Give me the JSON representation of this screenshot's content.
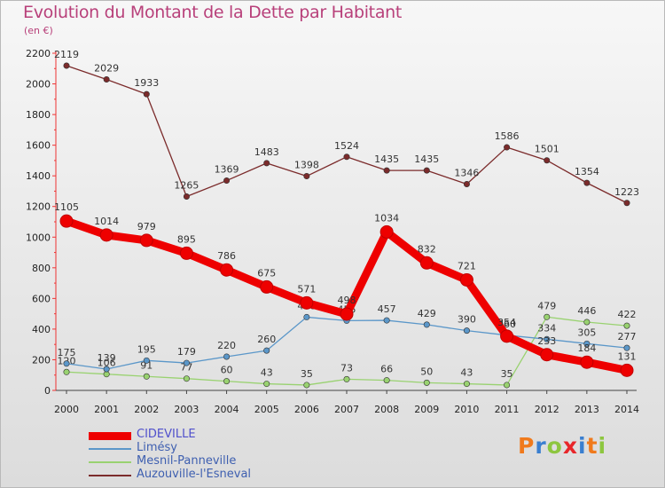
{
  "header": {
    "title": "Evolution du Montant de la Dette par Habitant",
    "unit": "(en €)"
  },
  "logo": {
    "letters": [
      "P",
      "r",
      "o",
      "x",
      "i",
      "t",
      "i"
    ],
    "colors": [
      "#f07a1c",
      "#3a7fd0",
      "#8dc63f",
      "#e8262a",
      "#3a7fd0",
      "#f07a1c",
      "#8dc63f"
    ]
  },
  "chart_data": {
    "type": "line",
    "categories": [
      "2000",
      "2001",
      "2002",
      "2003",
      "2004",
      "2005",
      "2006",
      "2007",
      "2008",
      "2009",
      "2010",
      "2011",
      "2012",
      "2013",
      "2014"
    ],
    "ylim": [
      0,
      2200
    ],
    "yticks": [
      0,
      200,
      400,
      600,
      800,
      1000,
      1200,
      1400,
      1600,
      1800,
      2000,
      2200
    ],
    "grid": false,
    "legend_position": "bottom-left",
    "series": [
      {
        "name": "Auzouville-l'Esneval",
        "color": "#7b2b2b",
        "values": [
          2119,
          2029,
          1933,
          1265,
          1369,
          1483,
          1398,
          1524,
          1435,
          1435,
          1346,
          1586,
          1501,
          1354,
          1223
        ]
      },
      {
        "name": "Mesnil-Panneville",
        "color": "#99d270",
        "values": [
          120,
          106,
          91,
          77,
          60,
          43,
          35,
          73,
          66,
          50,
          43,
          35,
          479,
          446,
          422
        ]
      },
      {
        "name": "Limésy",
        "color": "#5b97c9",
        "values": [
          175,
          139,
          195,
          179,
          220,
          260,
          478,
          455,
          457,
          429,
          390,
          360,
          334,
          305,
          277
        ]
      },
      {
        "name": "CIDEVILLE",
        "color": "#ee0000",
        "values": [
          1105,
          1014,
          979,
          895,
          786,
          675,
          571,
          498,
          1034,
          832,
          721,
          354,
          233,
          184,
          131
        ]
      }
    ]
  }
}
